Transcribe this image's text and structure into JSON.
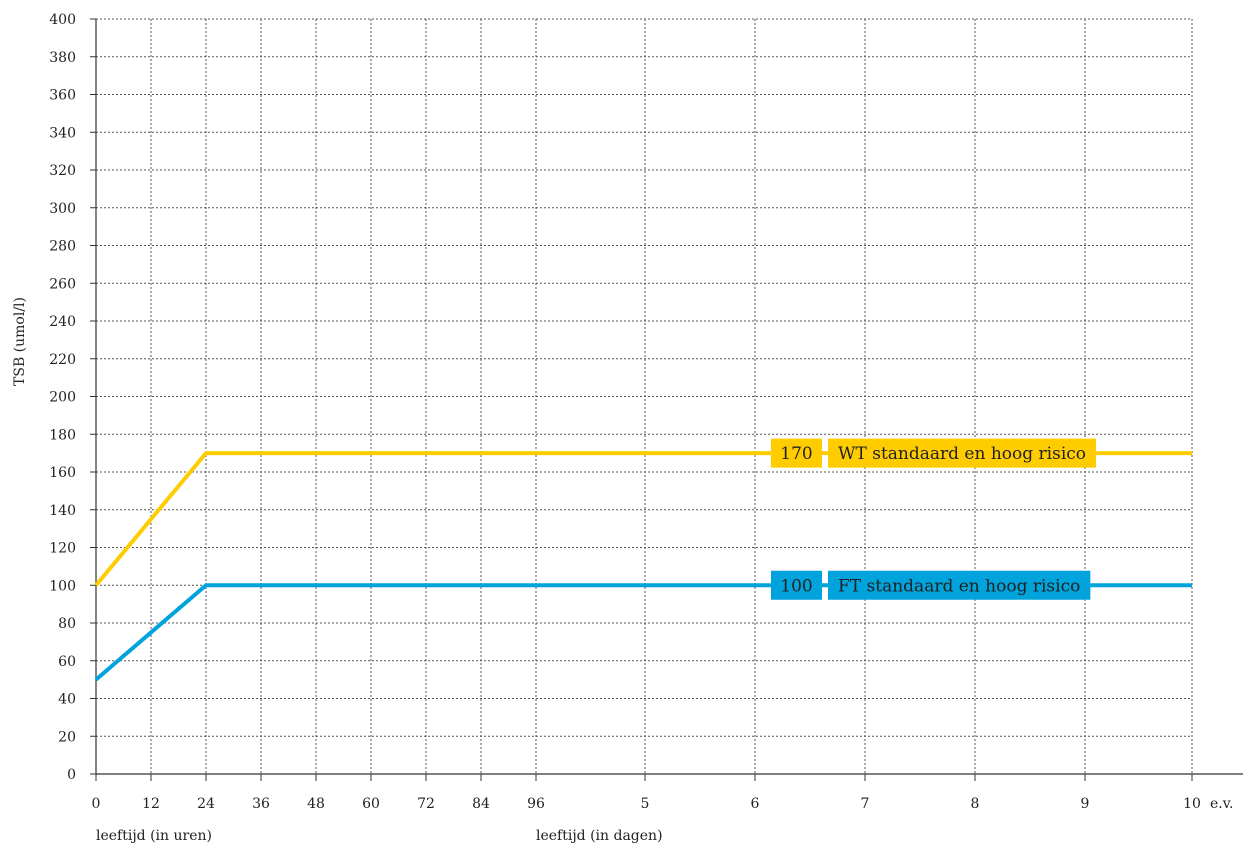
{
  "chart_data": {
    "type": "line",
    "ylabel": "TSB (umol/l)",
    "ylim": [
      0,
      400
    ],
    "y_ticks": [
      0,
      20,
      40,
      60,
      80,
      100,
      120,
      140,
      160,
      180,
      200,
      220,
      240,
      260,
      280,
      300,
      320,
      340,
      360,
      380,
      400
    ],
    "x_tick_labels": [
      "0",
      "12",
      "24",
      "36",
      "48",
      "60",
      "72",
      "84",
      "96",
      "5",
      "6",
      "7",
      "8",
      "9",
      "10"
    ],
    "x_suffix": "e.v.",
    "x_axis_labels": [
      {
        "text": "leeftijd (in uren)"
      },
      {
        "text": "leeftijd (in dagen)"
      }
    ],
    "grid": true,
    "series": [
      {
        "name": "WT standaard en hoog risico",
        "value_label": "170",
        "color": "#FFCC00",
        "points": [
          [
            "0",
            100
          ],
          [
            "24",
            170
          ],
          [
            "10",
            170
          ]
        ]
      },
      {
        "name": "FT standaard en hoog risico",
        "value_label": "100",
        "color": "#00A3DC",
        "points": [
          [
            "0",
            50
          ],
          [
            "24",
            100
          ],
          [
            "10",
            100
          ]
        ]
      }
    ]
  }
}
